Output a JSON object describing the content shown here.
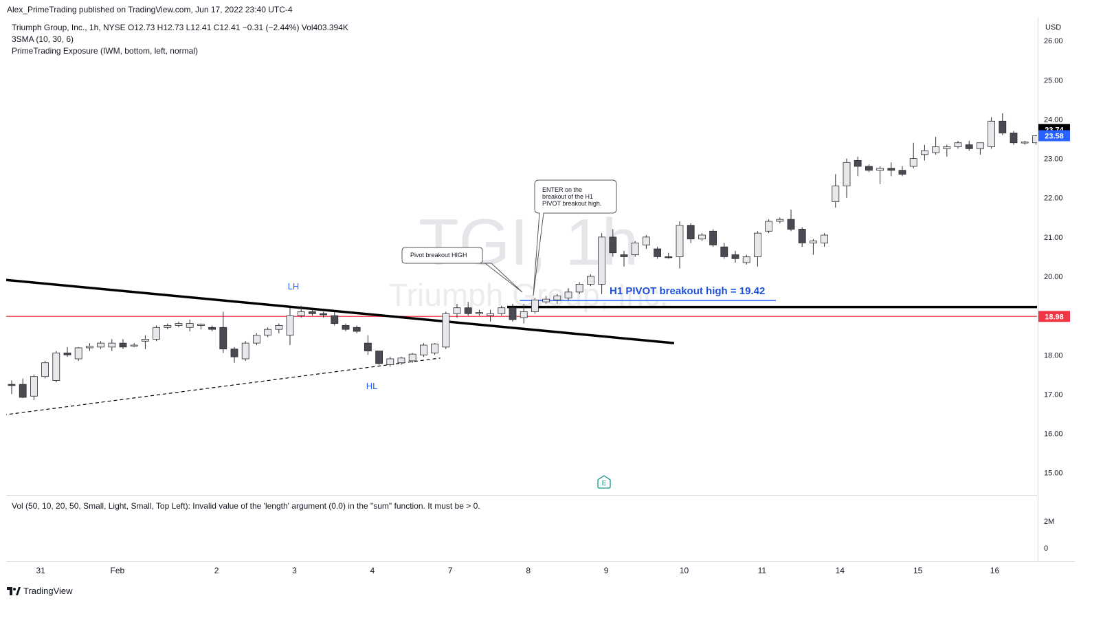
{
  "header": {
    "published_line": "Alex_PrimeTrading published on TradingView.com, Jun 17, 2022 23:40 UTC-4"
  },
  "legend": {
    "symbol_line": "Triumph Group, Inc., 1h, NYSE  O12.73  H12.73  L12.41  C12.41  −0.31 (−2.44%)  Vol403.394K",
    "sma_line": "3SMA (10, 30, 6)",
    "exposure_line": "PrimeTrading Exposure (IWM, bottom, left, normal)"
  },
  "watermark": {
    "ticker": "TGI, 1h",
    "company": "Triumph Group, Inc."
  },
  "annotations": {
    "lh": "LH",
    "hl": "HL",
    "pivot_box": "Pivot breakout HIGH",
    "enter_box": [
      "ENTER on the",
      "breakout of the H1",
      "PIVOT breakout high."
    ],
    "pivot_line_label": "H1 PIVOT breakout high = 19.42",
    "earnings_marker": "E"
  },
  "volume_pane": {
    "message": "Vol (50, 10, 20, 50, Small, Light, Small, Top Left): Invalid value of the 'length' argument (0.0) in the \"sum\" function. It must be > 0.",
    "axis_labels": [
      "2M",
      "0"
    ]
  },
  "price_axis": {
    "currency": "USD",
    "tick_labels": [
      "26.00",
      "25.00",
      "24.00",
      "23.00",
      "22.00",
      "21.00",
      "20.00",
      "18.00",
      "17.00",
      "16.00",
      "15.00"
    ],
    "badges": [
      {
        "value": "23.74",
        "bg": "#000000",
        "fg": "#ffffff"
      },
      {
        "value": "23.58",
        "bg": "#2962ff",
        "fg": "#ffffff"
      },
      {
        "value": "18.98",
        "bg": "#f23645",
        "fg": "#ffffff"
      }
    ]
  },
  "time_axis": {
    "labels": [
      "31",
      "Feb",
      "2",
      "3",
      "4",
      "7",
      "8",
      "9",
      "10",
      "11",
      "14",
      "15",
      "16"
    ]
  },
  "footer": {
    "brand": "TradingView"
  },
  "colors": {
    "down_candle": "#4a4a52",
    "up_candle": "#e8e8ec",
    "red_level": "#f23645",
    "blue_accent": "#2962ff",
    "pivot_text": "#1e4fd8",
    "lh_hl_text": "#2962ff",
    "earnings": "#0d9488"
  },
  "chart_data": {
    "type": "candlestick",
    "symbol": "TGI",
    "interval": "1h",
    "y_axis": {
      "ylim": [
        14.5,
        26.6
      ],
      "unit": "USD"
    },
    "x_axis_labels": [
      "31",
      "Feb",
      "2",
      "3",
      "4",
      "7",
      "8",
      "9",
      "10",
      "11",
      "14",
      "15",
      "16"
    ],
    "candles": [
      {
        "o": 17.25,
        "h": 17.35,
        "l": 17.0,
        "c": 17.22
      },
      {
        "o": 17.25,
        "h": 17.4,
        "l": 16.9,
        "c": 16.92
      },
      {
        "o": 16.95,
        "h": 17.5,
        "l": 16.85,
        "c": 17.45
      },
      {
        "o": 17.45,
        "h": 17.85,
        "l": 17.4,
        "c": 17.8
      },
      {
        "o": 17.35,
        "h": 18.1,
        "l": 17.3,
        "c": 18.05
      },
      {
        "o": 18.05,
        "h": 18.2,
        "l": 17.95,
        "c": 18.0
      },
      {
        "o": 17.9,
        "h": 18.2,
        "l": 17.85,
        "c": 18.18
      },
      {
        "o": 18.18,
        "h": 18.3,
        "l": 18.1,
        "c": 18.22
      },
      {
        "o": 18.2,
        "h": 18.35,
        "l": 18.15,
        "c": 18.3
      },
      {
        "o": 18.2,
        "h": 18.4,
        "l": 18.1,
        "c": 18.3
      },
      {
        "o": 18.3,
        "h": 18.4,
        "l": 18.15,
        "c": 18.2
      },
      {
        "o": 18.25,
        "h": 18.3,
        "l": 18.2,
        "c": 18.25
      },
      {
        "o": 18.35,
        "h": 18.5,
        "l": 18.15,
        "c": 18.4
      },
      {
        "o": 18.4,
        "h": 18.75,
        "l": 18.35,
        "c": 18.7
      },
      {
        "o": 18.7,
        "h": 18.8,
        "l": 18.65,
        "c": 18.75
      },
      {
        "o": 18.75,
        "h": 18.85,
        "l": 18.7,
        "c": 18.8
      },
      {
        "o": 18.7,
        "h": 18.9,
        "l": 18.6,
        "c": 18.8
      },
      {
        "o": 18.75,
        "h": 18.8,
        "l": 18.65,
        "c": 18.78
      },
      {
        "o": 18.7,
        "h": 18.75,
        "l": 18.6,
        "c": 18.65
      },
      {
        "o": 18.7,
        "h": 19.1,
        "l": 18.05,
        "c": 18.15
      },
      {
        "o": 18.15,
        "h": 18.2,
        "l": 17.8,
        "c": 17.95
      },
      {
        "o": 17.9,
        "h": 18.35,
        "l": 17.85,
        "c": 18.3
      },
      {
        "o": 18.3,
        "h": 18.55,
        "l": 18.25,
        "c": 18.5
      },
      {
        "o": 18.5,
        "h": 18.7,
        "l": 18.45,
        "c": 18.65
      },
      {
        "o": 18.65,
        "h": 18.8,
        "l": 18.55,
        "c": 18.75
      },
      {
        "o": 18.5,
        "h": 19.2,
        "l": 18.25,
        "c": 19.0
      },
      {
        "o": 19.0,
        "h": 19.25,
        "l": 18.95,
        "c": 19.1
      },
      {
        "o": 19.1,
        "h": 19.15,
        "l": 19.0,
        "c": 19.05
      },
      {
        "o": 19.05,
        "h": 19.1,
        "l": 18.95,
        "c": 19.02
      },
      {
        "o": 19.0,
        "h": 19.1,
        "l": 18.75,
        "c": 18.8
      },
      {
        "o": 18.75,
        "h": 18.8,
        "l": 18.6,
        "c": 18.65
      },
      {
        "o": 18.7,
        "h": 18.75,
        "l": 18.55,
        "c": 18.6
      },
      {
        "o": 18.3,
        "h": 18.5,
        "l": 18.0,
        "c": 18.1
      },
      {
        "o": 18.1,
        "h": 18.1,
        "l": 17.75,
        "c": 17.78
      },
      {
        "o": 17.75,
        "h": 17.95,
        "l": 17.7,
        "c": 17.9
      },
      {
        "o": 17.8,
        "h": 17.95,
        "l": 17.75,
        "c": 17.92
      },
      {
        "o": 17.85,
        "h": 18.05,
        "l": 17.8,
        "c": 18.02
      },
      {
        "o": 18.0,
        "h": 18.3,
        "l": 17.95,
        "c": 18.25
      },
      {
        "o": 18.05,
        "h": 18.3,
        "l": 18.0,
        "c": 18.28
      },
      {
        "o": 18.2,
        "h": 19.1,
        "l": 18.15,
        "c": 19.05
      },
      {
        "o": 19.05,
        "h": 19.3,
        "l": 18.95,
        "c": 19.2
      },
      {
        "o": 19.2,
        "h": 19.35,
        "l": 19.0,
        "c": 19.05
      },
      {
        "o": 19.05,
        "h": 19.15,
        "l": 19.0,
        "c": 19.08
      },
      {
        "o": 19.0,
        "h": 19.15,
        "l": 18.85,
        "c": 19.05
      },
      {
        "o": 19.05,
        "h": 19.25,
        "l": 19.0,
        "c": 19.2
      },
      {
        "o": 19.2,
        "h": 19.3,
        "l": 18.85,
        "c": 18.9
      },
      {
        "o": 18.95,
        "h": 19.3,
        "l": 18.8,
        "c": 19.1
      },
      {
        "o": 19.1,
        "h": 19.45,
        "l": 19.05,
        "c": 19.4
      },
      {
        "o": 19.35,
        "h": 19.5,
        "l": 19.3,
        "c": 19.42
      },
      {
        "o": 19.4,
        "h": 19.55,
        "l": 19.3,
        "c": 19.5
      },
      {
        "o": 19.45,
        "h": 19.7,
        "l": 19.4,
        "c": 19.6
      },
      {
        "o": 19.6,
        "h": 19.85,
        "l": 19.55,
        "c": 19.8
      },
      {
        "o": 19.8,
        "h": 20.05,
        "l": 19.75,
        "c": 20.0
      },
      {
        "o": 19.8,
        "h": 21.1,
        "l": 19.55,
        "c": 21.0
      },
      {
        "o": 21.0,
        "h": 21.2,
        "l": 20.5,
        "c": 20.6
      },
      {
        "o": 20.55,
        "h": 20.65,
        "l": 20.25,
        "c": 20.5
      },
      {
        "o": 20.55,
        "h": 20.9,
        "l": 20.5,
        "c": 20.85
      },
      {
        "o": 20.8,
        "h": 21.05,
        "l": 20.7,
        "c": 21.0
      },
      {
        "o": 20.7,
        "h": 20.75,
        "l": 20.45,
        "c": 20.5
      },
      {
        "o": 20.5,
        "h": 20.6,
        "l": 20.45,
        "c": 20.48
      },
      {
        "o": 20.5,
        "h": 21.4,
        "l": 20.2,
        "c": 21.3
      },
      {
        "o": 21.3,
        "h": 21.35,
        "l": 20.85,
        "c": 20.95
      },
      {
        "o": 20.95,
        "h": 21.1,
        "l": 20.9,
        "c": 21.05
      },
      {
        "o": 21.15,
        "h": 21.2,
        "l": 20.75,
        "c": 20.8
      },
      {
        "o": 20.75,
        "h": 20.85,
        "l": 20.45,
        "c": 20.5
      },
      {
        "o": 20.55,
        "h": 20.65,
        "l": 20.35,
        "c": 20.45
      },
      {
        "o": 20.35,
        "h": 20.55,
        "l": 20.3,
        "c": 20.5
      },
      {
        "o": 20.5,
        "h": 21.15,
        "l": 20.25,
        "c": 21.1
      },
      {
        "o": 21.15,
        "h": 21.45,
        "l": 21.1,
        "c": 21.4
      },
      {
        "o": 21.4,
        "h": 21.5,
        "l": 21.35,
        "c": 21.45
      },
      {
        "o": 21.45,
        "h": 21.7,
        "l": 21.15,
        "c": 21.2
      },
      {
        "o": 21.2,
        "h": 21.25,
        "l": 20.75,
        "c": 20.85
      },
      {
        "o": 20.85,
        "h": 20.95,
        "l": 20.55,
        "c": 20.9
      },
      {
        "o": 20.85,
        "h": 21.1,
        "l": 20.75,
        "c": 21.05
      },
      {
        "o": 21.9,
        "h": 22.6,
        "l": 21.75,
        "c": 22.3
      },
      {
        "o": 22.3,
        "h": 23.0,
        "l": 22.0,
        "c": 22.9
      },
      {
        "o": 22.95,
        "h": 23.05,
        "l": 22.55,
        "c": 22.8
      },
      {
        "o": 22.8,
        "h": 22.85,
        "l": 22.65,
        "c": 22.7
      },
      {
        "o": 22.7,
        "h": 22.8,
        "l": 22.35,
        "c": 22.75
      },
      {
        "o": 22.75,
        "h": 22.9,
        "l": 22.55,
        "c": 22.7
      },
      {
        "o": 22.7,
        "h": 22.8,
        "l": 22.55,
        "c": 22.6
      },
      {
        "o": 22.8,
        "h": 23.4,
        "l": 22.75,
        "c": 23.0
      },
      {
        "o": 23.1,
        "h": 23.35,
        "l": 22.95,
        "c": 23.2
      },
      {
        "o": 23.15,
        "h": 23.55,
        "l": 23.1,
        "c": 23.3
      },
      {
        "o": 23.25,
        "h": 23.35,
        "l": 23.05,
        "c": 23.3
      },
      {
        "o": 23.3,
        "h": 23.45,
        "l": 23.25,
        "c": 23.4
      },
      {
        "o": 23.35,
        "h": 23.45,
        "l": 23.2,
        "c": 23.25
      },
      {
        "o": 23.25,
        "h": 23.4,
        "l": 23.1,
        "c": 23.4
      },
      {
        "o": 23.3,
        "h": 24.05,
        "l": 23.25,
        "c": 23.95
      },
      {
        "o": 23.95,
        "h": 24.15,
        "l": 23.6,
        "c": 23.65
      },
      {
        "o": 23.65,
        "h": 23.7,
        "l": 23.35,
        "c": 23.4
      },
      {
        "o": 23.4,
        "h": 23.45,
        "l": 23.35,
        "c": 23.42
      },
      {
        "o": 23.4,
        "h": 23.6,
        "l": 23.35,
        "c": 23.58
      }
    ],
    "horizontal_levels": [
      {
        "price": 18.98,
        "color": "#f23645",
        "style": "thin"
      },
      {
        "price": 19.22,
        "color": "#000000",
        "style": "thick"
      },
      {
        "price": 19.42,
        "color": "#2962ff",
        "style": "short"
      }
    ],
    "trendlines": [
      {
        "from": {
          "x_index": -1.3,
          "price": 19.93
        },
        "to": {
          "x_index": 59.5,
          "price": 18.3
        },
        "style": "solid-thick"
      },
      {
        "from": {
          "x_index": -1.3,
          "price": 16.45
        },
        "to": {
          "x_index": 38.5,
          "price": 17.92
        },
        "style": "dashed"
      }
    ]
  }
}
